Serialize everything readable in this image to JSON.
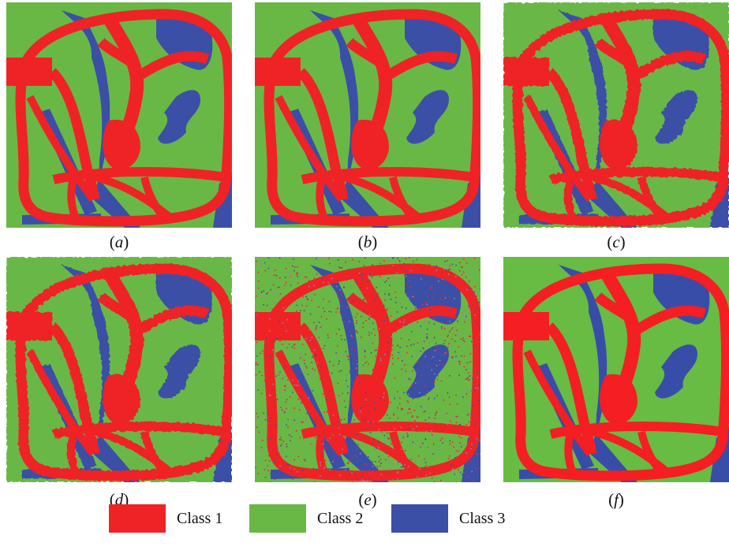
{
  "figure": {
    "panels": [
      {
        "id": "a",
        "label": "a",
        "style": "smooth"
      },
      {
        "id": "b",
        "label": "b",
        "style": "smooth"
      },
      {
        "id": "c",
        "label": "c",
        "style": "jagged"
      },
      {
        "id": "d",
        "label": "d",
        "style": "jagged"
      },
      {
        "id": "e",
        "label": "e",
        "style": "noisy"
      },
      {
        "id": "f",
        "label": "f",
        "style": "blocky"
      }
    ],
    "legend": [
      {
        "label": "Class 1",
        "color": "#ef2326"
      },
      {
        "label": "Class 2",
        "color": "#69b846"
      },
      {
        "label": "Class 3",
        "color": "#3b4fa6"
      }
    ]
  }
}
